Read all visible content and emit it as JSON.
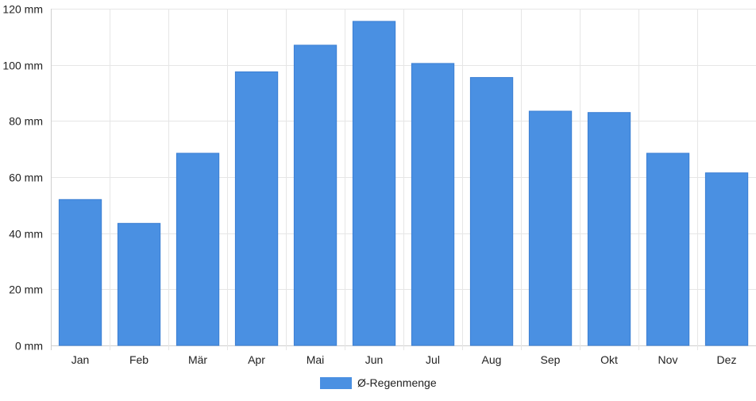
{
  "chart_data": {
    "type": "bar",
    "categories": [
      "Jan",
      "Feb",
      "Mär",
      "Apr",
      "Mai",
      "Jun",
      "Jul",
      "Aug",
      "Sep",
      "Okt",
      "Nov",
      "Dez"
    ],
    "series": [
      {
        "name": "Ø-Regenmenge",
        "values": [
          52,
          43.5,
          68.5,
          97.5,
          107,
          115.5,
          100.5,
          95.5,
          83.5,
          83,
          68.5,
          61.5
        ],
        "color": "#4a90e2"
      }
    ],
    "y_unit": "mm",
    "ylim": [
      0,
      120
    ],
    "yticks": [
      0,
      20,
      40,
      60,
      80,
      100,
      120
    ],
    "ytick_labels": [
      "0 mm",
      "20 mm",
      "40 mm",
      "60 mm",
      "80 mm",
      "100 mm",
      "120 mm"
    ],
    "grid": true,
    "legend_position": "bottom-center"
  },
  "legend": {
    "label": "Ø-Regenmenge",
    "color": "#4a90e2"
  }
}
